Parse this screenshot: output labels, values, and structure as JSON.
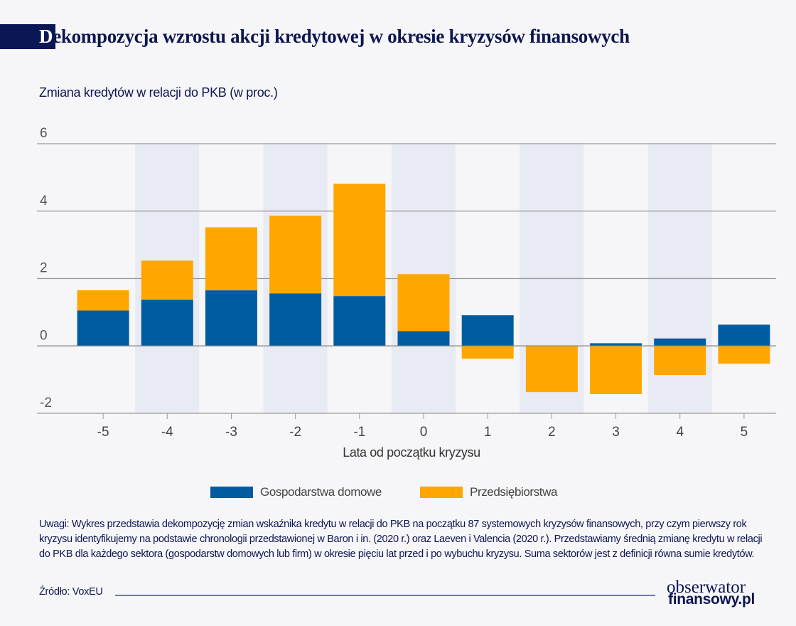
{
  "header": {
    "title_first_letter": "D",
    "title_rest": "ekompozycja wzrostu akcji kredytowej w okresie kryzysów finansowych",
    "subtitle": "Zmiana kredytów w relacji do PKB (w proc.)"
  },
  "chart_data": {
    "type": "bar",
    "stacked": true,
    "title": "Dekompozycja wzrostu akcji kredytowej w okresie kryzysów finansowych",
    "ylabel": "Zmiana kredytów w relacji do PKB (w proc.)",
    "xlabel": "Lata od początku kryzysu",
    "categories": [
      "-5",
      "-4",
      "-3",
      "-2",
      "-1",
      "0",
      "1",
      "2",
      "3",
      "4",
      "5"
    ],
    "series": [
      {
        "name": "Gospodarstwa domowe",
        "color": "#005ca1",
        "values": [
          1.05,
          1.37,
          1.65,
          1.56,
          1.48,
          0.44,
          0.91,
          0.01,
          0.08,
          0.22,
          0.63
        ]
      },
      {
        "name": "Przedsiębiorstwa",
        "color": "#ffa600",
        "values": [
          0.6,
          1.16,
          1.87,
          2.3,
          3.33,
          1.69,
          -0.38,
          -1.37,
          -1.43,
          -0.86,
          -0.53
        ]
      }
    ],
    "ylim": [
      -2,
      6
    ],
    "yticks": [
      "-2",
      "0",
      "2",
      "4",
      "6"
    ],
    "grid": true,
    "alternating_band_color": "#e8ebf3",
    "legend_position": "bottom"
  },
  "legend": [
    {
      "label": "Gospodarstwa domowe",
      "color": "#005ca1"
    },
    {
      "label": "Przedsiębiorstwa",
      "color": "#ffa600"
    }
  ],
  "notes": "Uwagi: Wykres przedstawia dekompozycję zmian wskaźnika kredytu w relacji do PKB na początku 87 systemowych kryzysów finansowych, przy czym pierwszy rok kryzysu identyfikujemy na podstawie chronologii przedstawionej w Baron i in. (2020 r.) oraz Laeven i Valencia (2020 r.). Przedstawiamy średnią zmianę kredytu w relacji do PKB dla każdego sektora (gospodarstw domowych lub firm) w okresie pięciu lat przed i po wybuchu kryzysu. Suma sektorów jest z definicji równa sumie kredytów.",
  "source": "Źródło: VoxEU",
  "logo": {
    "line1": "obserwator",
    "line2": "finansowy.pl"
  }
}
